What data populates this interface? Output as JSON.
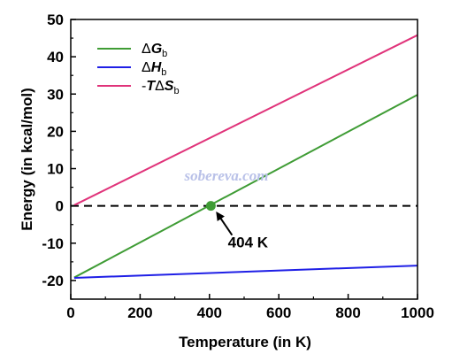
{
  "chart_data": {
    "type": "line",
    "xlabel": "Temperature (in K)",
    "ylabel": "Energy (in kcal/mol)",
    "xlim": [
      0,
      1000
    ],
    "ylim": [
      -25,
      50
    ],
    "x_ticks": [
      "0",
      "200",
      "400",
      "600",
      "800",
      "1000"
    ],
    "y_ticks": [
      "-20",
      "-10",
      "0",
      "10",
      "20",
      "30",
      "40",
      "50"
    ],
    "grid": false,
    "legend_position": "top-left",
    "series": [
      {
        "name": "ΔGb",
        "name_parts": [
          "Δ",
          "G",
          "b"
        ],
        "color": "#3f9c35",
        "x": [
          10,
          1000
        ],
        "y": [
          -19.2,
          29.8
        ]
      },
      {
        "name": "ΔHb",
        "name_parts": [
          "Δ",
          "H",
          "b"
        ],
        "color": "#1f1fe6",
        "x": [
          10,
          1000
        ],
        "y": [
          -19.3,
          -16.0
        ]
      },
      {
        "name": "-TΔSb",
        "name_parts": [
          "-",
          "T",
          "Δ",
          "S",
          "b"
        ],
        "color": "#e0337a",
        "x": [
          10,
          1000
        ],
        "y": [
          0.2,
          45.8
        ]
      }
    ],
    "reference_line": {
      "y": 0,
      "style": "dashed",
      "color": "#000000"
    },
    "highlight_point": {
      "x": 404,
      "y": 0,
      "color": "#3f9c35"
    },
    "annotations": [
      {
        "text": "404 K",
        "target_x": 404,
        "target_y": 0
      }
    ],
    "watermark": "sobereva.com"
  }
}
